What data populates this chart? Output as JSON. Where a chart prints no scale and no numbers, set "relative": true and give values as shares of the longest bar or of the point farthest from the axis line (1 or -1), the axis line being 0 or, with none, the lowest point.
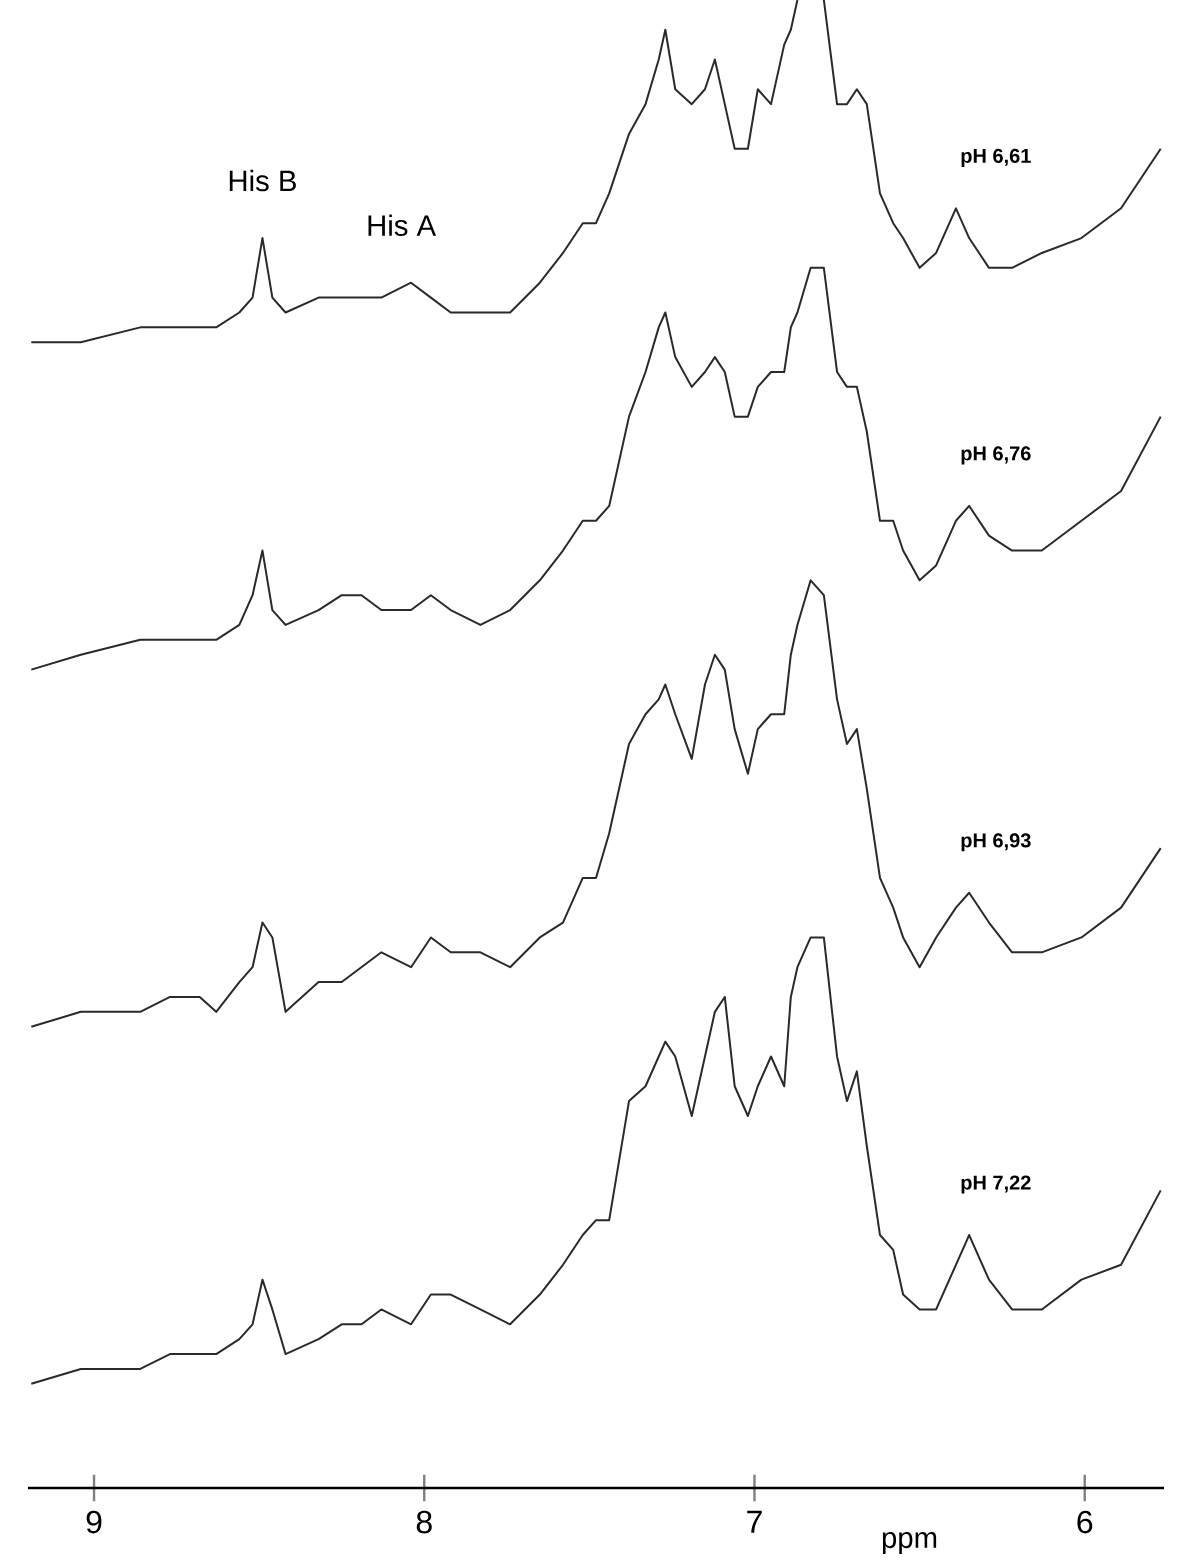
{
  "chart_data": {
    "type": "line",
    "relative": true,
    "xlabel": "ppm",
    "x": [
      9.19,
      9.04,
      8.86,
      8.77,
      8.68,
      8.63,
      8.56,
      8.52,
      8.49,
      8.46,
      8.42,
      8.32,
      8.25,
      8.19,
      8.13,
      8.04,
      7.98,
      7.92,
      7.83,
      7.74,
      7.65,
      7.58,
      7.52,
      7.48,
      7.44,
      7.38,
      7.33,
      7.29,
      7.27,
      7.24,
      7.19,
      7.15,
      7.12,
      7.09,
      7.06,
      7.02,
      6.99,
      6.95,
      6.91,
      6.89,
      6.87,
      6.83,
      6.79,
      6.75,
      6.72,
      6.69,
      6.66,
      6.62,
      6.58,
      6.55,
      6.5,
      6.45,
      6.39,
      6.35,
      6.29,
      6.22,
      6.13,
      6.01,
      5.89,
      5.77
    ],
    "xlim": [
      9.2,
      5.76
    ],
    "xticks": [
      9,
      8,
      7,
      6
    ],
    "series": [
      {
        "name": "pH 6,61",
        "color": "#2a2a2a",
        "values": [
          0.77,
          0.77,
          0.78,
          0.78,
          0.78,
          0.78,
          0.79,
          0.8,
          0.84,
          0.8,
          0.79,
          0.8,
          0.8,
          0.8,
          0.8,
          0.81,
          0.8,
          0.79,
          0.79,
          0.79,
          0.81,
          0.83,
          0.85,
          0.85,
          0.87,
          0.91,
          0.93,
          0.96,
          0.98,
          0.94,
          0.93,
          0.94,
          0.96,
          0.93,
          0.9,
          0.9,
          0.94,
          0.93,
          0.97,
          0.98,
          1.0,
          null,
          1.0,
          0.93,
          0.93,
          0.94,
          0.93,
          0.87,
          0.85,
          0.84,
          0.82,
          0.83,
          0.86,
          0.84,
          0.82,
          0.82,
          0.83,
          0.84,
          0.86,
          0.9
        ]
      },
      {
        "name": "pH 6,76",
        "color": "#2a2a2a",
        "values": [
          0.55,
          0.56,
          0.57,
          0.57,
          0.57,
          0.57,
          0.58,
          0.6,
          0.63,
          0.59,
          0.58,
          0.59,
          0.6,
          0.6,
          0.59,
          0.59,
          0.6,
          0.59,
          0.58,
          0.59,
          0.61,
          0.63,
          0.65,
          0.65,
          0.66,
          0.72,
          0.75,
          0.78,
          0.79,
          0.76,
          0.74,
          0.75,
          0.76,
          0.75,
          0.72,
          0.72,
          0.74,
          0.75,
          0.75,
          0.78,
          0.79,
          0.82,
          0.82,
          0.75,
          0.74,
          0.74,
          0.71,
          0.65,
          0.65,
          0.63,
          0.61,
          0.62,
          0.65,
          0.66,
          0.64,
          0.63,
          0.63,
          0.65,
          0.67,
          0.72
        ]
      },
      {
        "name": "pH 6,93",
        "color": "#2a2a2a",
        "values": [
          0.31,
          0.32,
          0.32,
          0.33,
          0.33,
          0.32,
          0.34,
          0.35,
          0.38,
          0.37,
          0.32,
          0.34,
          0.34,
          0.35,
          0.36,
          0.35,
          0.37,
          0.36,
          0.36,
          0.35,
          0.37,
          0.38,
          0.41,
          0.41,
          0.44,
          0.5,
          0.52,
          0.53,
          0.54,
          0.52,
          0.49,
          0.54,
          0.56,
          0.55,
          0.51,
          0.48,
          0.51,
          0.52,
          0.52,
          0.56,
          0.58,
          0.61,
          0.6,
          0.53,
          0.5,
          0.51,
          0.47,
          0.41,
          0.39,
          0.37,
          0.35,
          0.37,
          0.39,
          0.4,
          0.38,
          0.36,
          0.36,
          0.37,
          0.39,
          0.43
        ]
      },
      {
        "name": "pH 7,22",
        "color": "#2a2a2a",
        "values": [
          0.07,
          0.08,
          0.08,
          0.09,
          0.09,
          0.09,
          0.1,
          0.11,
          0.14,
          0.12,
          0.09,
          0.1,
          0.11,
          0.11,
          0.12,
          0.11,
          0.13,
          0.13,
          0.12,
          0.11,
          0.13,
          0.15,
          0.17,
          0.18,
          0.18,
          0.26,
          0.27,
          0.29,
          0.3,
          0.29,
          0.25,
          0.29,
          0.32,
          0.33,
          0.27,
          0.25,
          0.27,
          0.29,
          0.27,
          0.33,
          0.35,
          0.37,
          0.37,
          0.29,
          0.26,
          0.28,
          0.23,
          0.17,
          0.16,
          0.13,
          0.12,
          0.12,
          0.15,
          0.17,
          0.14,
          0.12,
          0.12,
          0.14,
          0.15,
          0.2
        ]
      }
    ],
    "annotations": [
      {
        "text": "His B",
        "x": 8.49,
        "y": 0.84
      },
      {
        "text": "His A",
        "x": 8.07,
        "y": 0.81
      }
    ]
  }
}
